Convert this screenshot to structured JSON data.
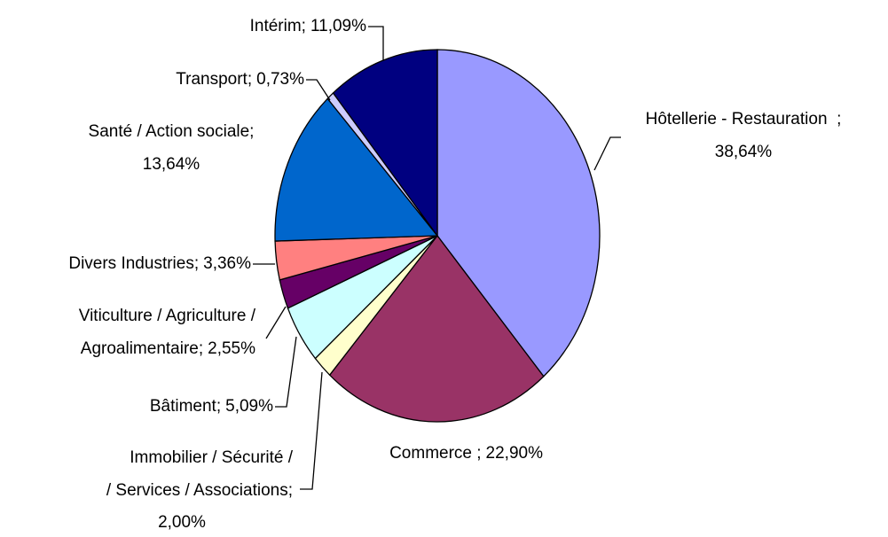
{
  "chart_data": {
    "type": "pie",
    "categories": [
      "Hôtellerie - Restauration  ;",
      "Commerce ;",
      "Immobilier / Sécurité /\n/ Services / Associations;",
      "Bâtiment;",
      "Viticulture / Agriculture /\nAgroalimentaire;",
      "Divers Industries;",
      "Santé / Action sociale;",
      "Transport;",
      "Intérim;"
    ],
    "values": [
      38.64,
      22.9,
      2.0,
      5.09,
      2.55,
      3.36,
      13.64,
      0.73,
      11.09
    ],
    "value_labels": [
      "38,64%",
      "22,90%",
      "2,00%",
      "5,09%",
      "2,55%",
      "3,36%",
      "13,64%",
      "0,73%",
      "11,09%"
    ],
    "colors": [
      "#9999ff",
      "#993366",
      "#ffffcc",
      "#ccffff",
      "#660066",
      "#ff8080",
      "#0066cc",
      "#ccccff",
      "#000080"
    ]
  }
}
